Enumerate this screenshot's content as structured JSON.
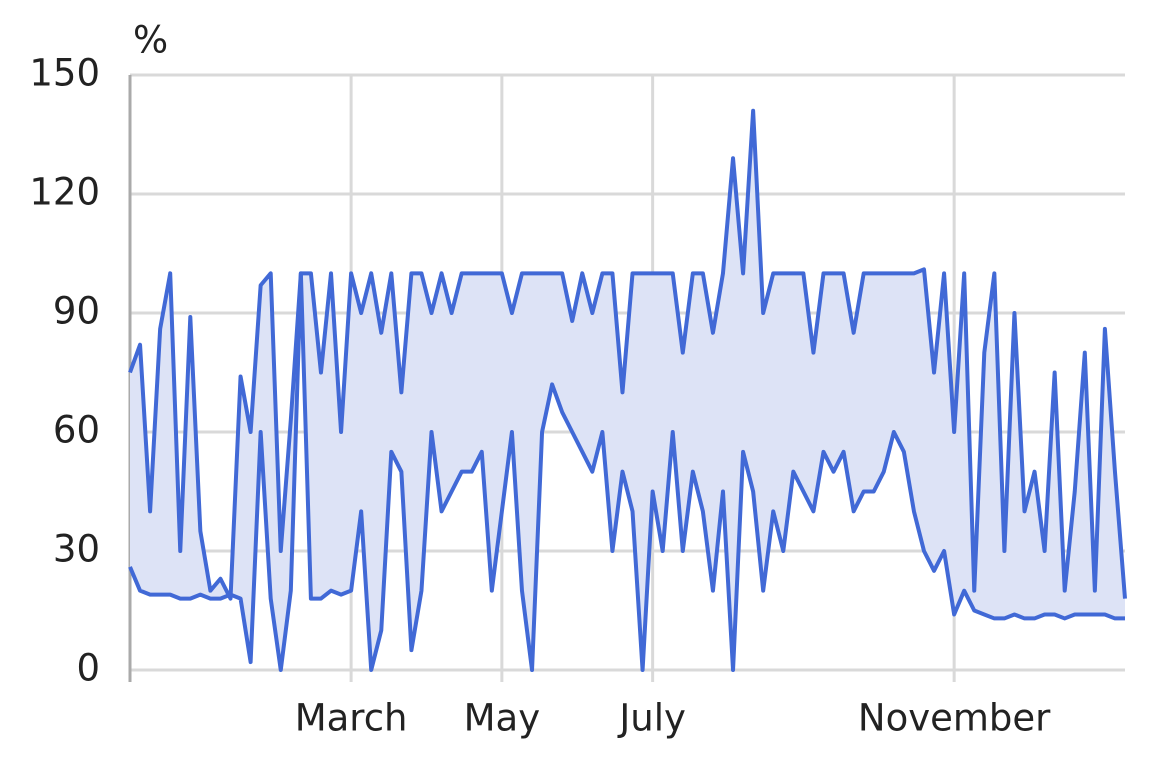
{
  "chart_data": {
    "type": "line",
    "ylabel": "%",
    "categories": [
      null,
      null,
      null,
      null,
      null,
      null,
      null,
      null,
      null,
      null,
      null,
      null,
      null,
      null,
      null,
      null,
      null,
      null,
      null,
      null,
      null,
      null,
      "March",
      null,
      null,
      null,
      null,
      null,
      null,
      null,
      null,
      null,
      null,
      null,
      null,
      null,
      null,
      "May",
      null,
      null,
      null,
      null,
      null,
      null,
      null,
      null,
      null,
      null,
      null,
      null,
      null,
      null,
      "July",
      null,
      null,
      null,
      null,
      null,
      null,
      null,
      null,
      null,
      null,
      null,
      null,
      null,
      null,
      null,
      null,
      null,
      null,
      null,
      null,
      null,
      null,
      null,
      null,
      null,
      null,
      null,
      null,
      null,
      "November",
      null,
      null,
      null,
      null,
      null,
      null,
      null,
      null,
      null,
      null,
      null,
      null,
      null,
      null,
      null,
      null,
      null
    ],
    "series": [
      {
        "color": "#4169d6",
        "values": [
          75,
          82,
          40,
          86,
          100,
          30,
          89,
          35,
          20,
          23,
          18,
          74,
          60,
          97,
          100,
          30,
          63,
          100,
          100,
          75,
          100,
          60,
          100,
          90,
          100,
          85,
          100,
          70,
          100,
          100,
          90,
          100,
          90,
          100,
          100,
          100,
          100,
          100,
          90,
          100,
          100,
          100,
          100,
          100,
          88,
          100,
          90,
          100,
          100,
          70,
          100,
          100,
          100,
          100,
          100,
          80,
          100,
          100,
          85,
          100,
          129,
          100,
          141,
          90,
          100,
          100,
          100,
          100,
          80,
          100,
          100,
          100,
          85,
          100,
          100,
          100,
          100,
          100,
          100,
          101,
          75,
          100,
          60,
          100,
          20,
          80,
          100,
          30,
          90,
          40,
          50,
          30,
          75,
          20,
          45,
          80,
          20,
          86,
          50,
          18
        ]
      },
      {
        "color": "#4169d6",
        "values": [
          26,
          20,
          19,
          19,
          19,
          18,
          18,
          19,
          18,
          18,
          19,
          18,
          2,
          60,
          18,
          0,
          20,
          100,
          18,
          18,
          20,
          19,
          20,
          40,
          0,
          10,
          55,
          50,
          5,
          20,
          60,
          40,
          45,
          50,
          50,
          55,
          20,
          40,
          60,
          20,
          0,
          60,
          72,
          65,
          60,
          55,
          50,
          60,
          30,
          50,
          40,
          0,
          45,
          30,
          60,
          30,
          50,
          40,
          20,
          45,
          0,
          55,
          45,
          20,
          40,
          30,
          50,
          45,
          40,
          55,
          50,
          55,
          40,
          45,
          45,
          50,
          60,
          55,
          40,
          30,
          25,
          30,
          14,
          20,
          15,
          14,
          13,
          13,
          14,
          13,
          13,
          14,
          14,
          13,
          14,
          14,
          14,
          14,
          13,
          13
        ]
      }
    ],
    "fill_between": true,
    "fill_color": "#dde3f6",
    "ylim": [
      0,
      150
    ],
    "yticks": [
      0,
      30,
      60,
      90,
      120,
      150
    ],
    "grid": true
  }
}
